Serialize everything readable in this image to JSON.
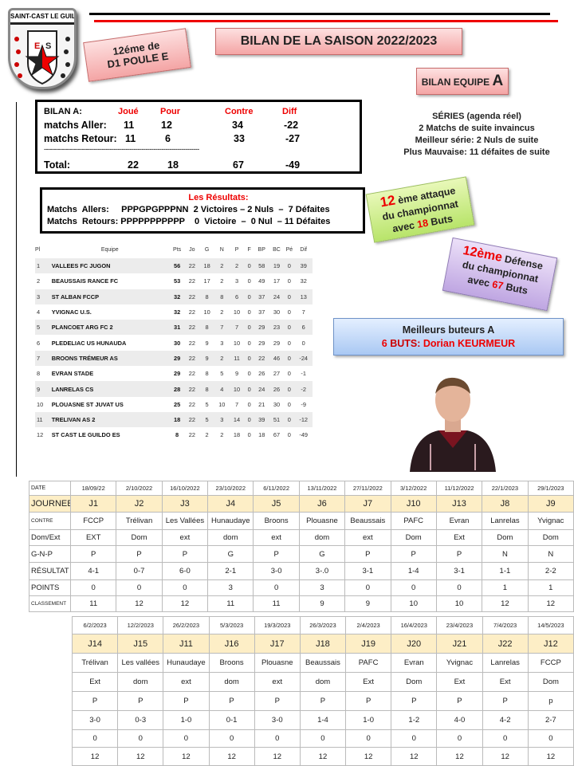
{
  "logo": {
    "text": "SAINT-CAST LE GUILDO",
    "inner_text": "E.S. SAINT CAST LE GUILDO",
    "letters": "E S"
  },
  "rank_badge": {
    "line1": "12éme de",
    "line2": "D1 POULE E"
  },
  "title": "BILAN DE LA SAISON 2022/2023",
  "team_badge": {
    "text": "BILAN EQUIPE ",
    "letter": "A"
  },
  "bilan": {
    "headers": [
      "BILAN A:",
      "Joué",
      "Pour",
      "Contre",
      "Diff"
    ],
    "rows": [
      [
        "matchs Aller:",
        "11",
        "12",
        "34",
        "-22"
      ],
      [
        "matchs Retour:",
        "11",
        "6",
        "33",
        "-27"
      ]
    ],
    "separator": "------------------------------------------------------------------------------",
    "total": [
      "Total:",
      "22",
      "18",
      "67",
      "-49"
    ]
  },
  "resultats": {
    "title": "Les Résultats:",
    "aller": "Matchs  Allers:     PPPGPGPPPNN  2 Victoires – 2 Nuls  –  7 Défaites",
    "retour": "Matchs  Retours: PPPPPPPPPPP    0  Victoire  –  0 Nul  – 11 Défaites"
  },
  "series": {
    "lines": [
      "SÉRIES  (agenda réel)",
      "2 Matchs  de suite invaincus",
      "Meilleur série: 2 Nuls de suite",
      "Plus Mauvaise:  11 défaites de suite"
    ]
  },
  "attack": {
    "rank": "12",
    "line1": " ème attaque",
    "line2": "du championnat",
    "pre": "avec ",
    "goals": "18",
    "post": " Buts"
  },
  "defense": {
    "rank": "12ème",
    "line1": " Défense",
    "line2": "du championnat",
    "pre": "avec ",
    "goals": "67",
    "post": " Buts"
  },
  "scorer": {
    "title": "Meilleurs buteurs A",
    "count": "6",
    "label": " BUTS: ",
    "name": "Dorian KEURMEUR"
  },
  "standings": {
    "headers": [
      "Pl",
      "Equipe",
      "Pts",
      "Jo",
      "G",
      "N",
      "P",
      "F",
      "BP",
      "BC",
      "Pé",
      "Dif"
    ],
    "rows": [
      [
        "1",
        "VALLEES FC JUGON",
        "56",
        "22",
        "18",
        "2",
        "2",
        "0",
        "58",
        "19",
        "0",
        "39"
      ],
      [
        "2",
        "BEAUSSAIS RANCE FC",
        "53",
        "22",
        "17",
        "2",
        "3",
        "0",
        "49",
        "17",
        "0",
        "32"
      ],
      [
        "3",
        "ST ALBAN FCCP",
        "32",
        "22",
        "8",
        "8",
        "6",
        "0",
        "37",
        "24",
        "0",
        "13"
      ],
      [
        "4",
        "YVIGNAC U.S.",
        "32",
        "22",
        "10",
        "2",
        "10",
        "0",
        "37",
        "30",
        "0",
        "7"
      ],
      [
        "5",
        "PLANCOET ARG FC 2",
        "31",
        "22",
        "8",
        "7",
        "7",
        "0",
        "29",
        "23",
        "0",
        "6"
      ],
      [
        "6",
        "PLEDELIAC US HUNAUDA",
        "30",
        "22",
        "9",
        "3",
        "10",
        "0",
        "29",
        "29",
        "0",
        "0"
      ],
      [
        "7",
        "BROONS TRÉMEUR AS",
        "29",
        "22",
        "9",
        "2",
        "11",
        "0",
        "22",
        "46",
        "0",
        "-24"
      ],
      [
        "8",
        "EVRAN STADE",
        "29",
        "22",
        "8",
        "5",
        "9",
        "0",
        "26",
        "27",
        "0",
        "-1"
      ],
      [
        "9",
        "LANRELAS CS",
        "28",
        "22",
        "8",
        "4",
        "10",
        "0",
        "24",
        "26",
        "0",
        "-2"
      ],
      [
        "10",
        "PLOUASNE ST JUVAT US",
        "25",
        "22",
        "5",
        "10",
        "7",
        "0",
        "21",
        "30",
        "0",
        "-9"
      ],
      [
        "11",
        "TRELIVAN AS 2",
        "18",
        "22",
        "5",
        "3",
        "14",
        "0",
        "39",
        "51",
        "0",
        "-12"
      ],
      [
        "12",
        "ST CAST LE GUILDO ES",
        "8",
        "22",
        "2",
        "2",
        "18",
        "0",
        "18",
        "67",
        "0",
        "-49"
      ]
    ]
  },
  "matches_aller": {
    "labels": [
      "DATE",
      "JOURNEE",
      "CONTRE",
      "Dom/Ext",
      "G-N-P",
      "RÉSULTAT",
      "POINTS",
      "CLASSEMENT"
    ],
    "rows": [
      [
        "18/09/22",
        "2/10/2022",
        "16/10/2022",
        "23/10/2022",
        "6/11/2022",
        "13/11/2022",
        "27/11/2022",
        "3/12/2022",
        "11/12/2022",
        "22/1/2023",
        "29/1/2023"
      ],
      [
        "J1",
        "J2",
        "J3",
        "J4",
        "J5",
        "J6",
        "J7",
        "J10",
        "J13",
        "J8",
        "J9"
      ],
      [
        "FCCP",
        "Trélivan",
        "Les Vallées",
        "Hunaudaye",
        "Broons",
        "Plouasne",
        "Beaussais",
        "PAFC",
        "Evran",
        "Lanrelas",
        "Yvignac"
      ],
      [
        "EXT",
        "Dom",
        "ext",
        "dom",
        "ext",
        "dom",
        "ext",
        "Dom",
        "Ext",
        "Dom",
        "Dom"
      ],
      [
        "P",
        "P",
        "P",
        "G",
        "P",
        "G",
        "P",
        "P",
        "P",
        "N",
        "N"
      ],
      [
        "4-1",
        "0-7",
        "6-0",
        "2-1",
        "3-0",
        "3-.0",
        "3-1",
        "1-4",
        "3-1",
        "1-1",
        "2-2"
      ],
      [
        "0",
        "0",
        "0",
        "3",
        "0",
        "3",
        "0",
        "0",
        "0",
        "1",
        "1"
      ],
      [
        "11",
        "12",
        "12",
        "11",
        "11",
        "9",
        "9",
        "10",
        "10",
        "12",
        "12"
      ]
    ]
  },
  "matches_retour": {
    "rows": [
      [
        "6/2/2023",
        "12/2/2023",
        "26/2/2023",
        "5/3/2023",
        "19/3/2023",
        "26/3/2023",
        "2/4/2023",
        "16/4/2023",
        "23/4/2023",
        "7/4/2023",
        "14/5/2023"
      ],
      [
        "J14",
        "J15",
        "J11",
        "J16",
        "J17",
        "J18",
        "J19",
        "J20",
        "J21",
        "J22",
        "J12"
      ],
      [
        "Trélivan",
        "Les vallées",
        "Hunaudaye",
        "Broons",
        "Plouasne",
        "Beaussais",
        "PAFC",
        "Evran",
        "Yvignac",
        "Lanrelas",
        "FCCP"
      ],
      [
        "Ext",
        "dom",
        "ext",
        "dom",
        "ext",
        "dom",
        "Ext",
        "Dom",
        "Ext",
        "Ext",
        "Dom"
      ],
      [
        "P",
        "P",
        "P",
        "P",
        "P",
        "P",
        "P",
        "P",
        "P",
        "P",
        "p"
      ],
      [
        "3-0",
        "0-3",
        "1-0",
        "0-1",
        "3-0",
        "1-4",
        "1-0",
        "1-2",
        "4-0",
        "4-2",
        "2-7"
      ],
      [
        "0",
        "0",
        "0",
        "0",
        "0",
        "0",
        "0",
        "0",
        "0",
        "0",
        "0"
      ],
      [
        "12",
        "12",
        "12",
        "12",
        "12",
        "12",
        "12",
        "12",
        "12",
        "12",
        "12"
      ]
    ]
  },
  "colors": {
    "accent_red": "#e00000",
    "journee_bg": "#fdeec6",
    "pink": "#f4a5a5",
    "green": "#c6ef7a",
    "purple": "#c9b3e8",
    "blue": "#b8d3f7"
  }
}
